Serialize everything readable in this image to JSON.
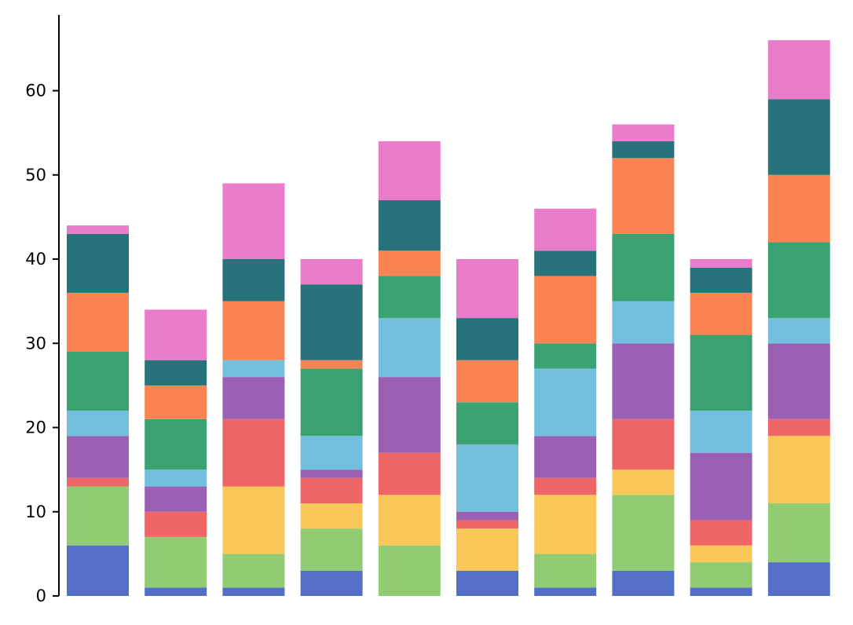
{
  "chart_data": {
    "type": "bar",
    "stacked": true,
    "title": "",
    "xlabel": "",
    "ylabel": "",
    "categories": [
      "",
      "",
      "",
      "",
      "",
      "",
      "",
      "",
      "",
      ""
    ],
    "ylim": [
      0,
      69
    ],
    "yticks": [
      0,
      10,
      20,
      30,
      40,
      50,
      60
    ],
    "ytick_labels": [
      "0",
      "10",
      "20",
      "30",
      "40",
      "50",
      "60"
    ],
    "grid": false,
    "legend": "none",
    "series": [
      {
        "color": "#5470c6",
        "values": [
          6,
          1,
          1,
          3,
          0,
          3,
          1,
          3,
          1,
          4
        ]
      },
      {
        "color": "#91cc75",
        "values": [
          7,
          6,
          4,
          5,
          6,
          0,
          4,
          9,
          3,
          7
        ]
      },
      {
        "color": "#fac858",
        "values": [
          0,
          0,
          8,
          3,
          6,
          5,
          7,
          3,
          2,
          8
        ]
      },
      {
        "color": "#ee6666",
        "values": [
          1,
          3,
          8,
          3,
          5,
          1,
          2,
          6,
          3,
          2
        ]
      },
      {
        "color": "#9a60b4",
        "values": [
          5,
          3,
          5,
          1,
          9,
          1,
          5,
          9,
          8,
          9
        ]
      },
      {
        "color": "#73c0de",
        "values": [
          3,
          2,
          2,
          4,
          7,
          8,
          8,
          5,
          5,
          3
        ]
      },
      {
        "color": "#3ba272",
        "values": [
          7,
          6,
          0,
          8,
          5,
          5,
          3,
          8,
          9,
          9
        ]
      },
      {
        "color": "#fc8452",
        "values": [
          7,
          4,
          7,
          1,
          3,
          5,
          8,
          9,
          5,
          8
        ]
      },
      {
        "color": "#27727b",
        "values": [
          7,
          3,
          5,
          9,
          6,
          5,
          3,
          2,
          3,
          9
        ]
      },
      {
        "color": "#ea7ccc",
        "values": [
          1,
          6,
          9,
          3,
          7,
          7,
          5,
          2,
          1,
          7
        ]
      }
    ]
  }
}
